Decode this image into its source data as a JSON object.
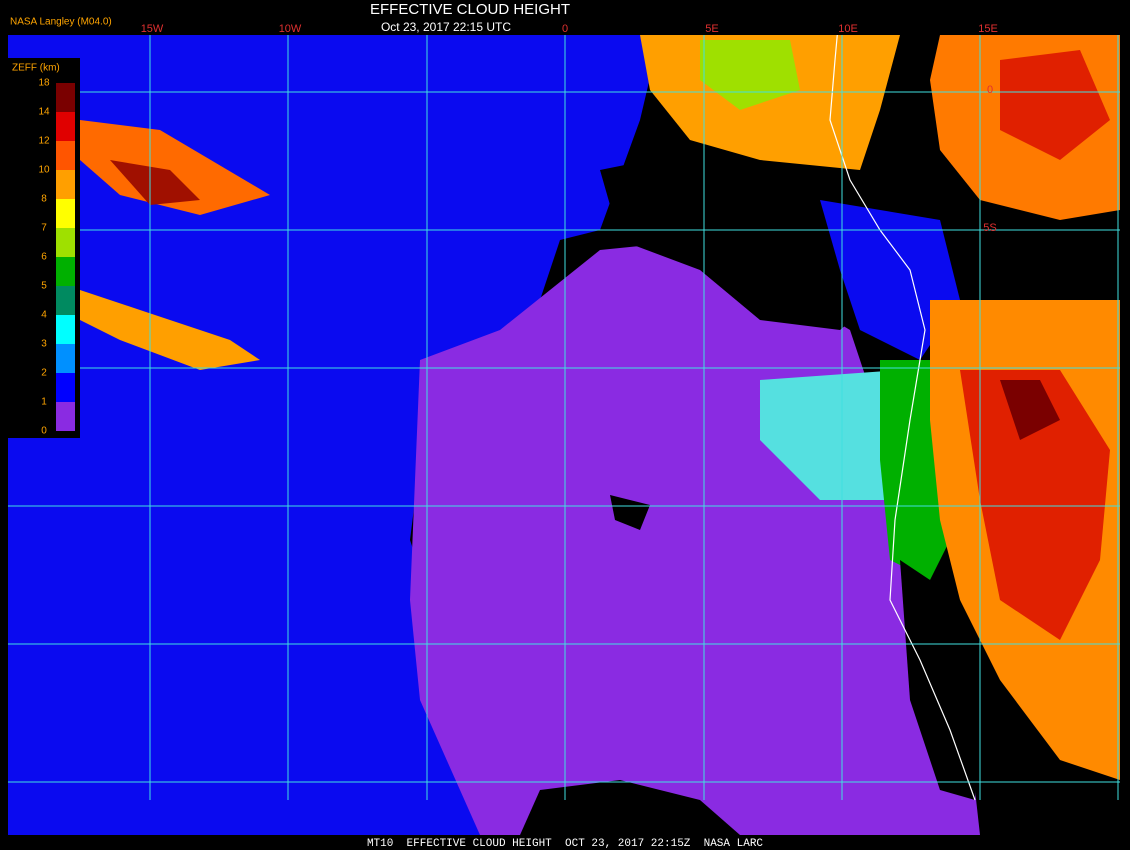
{
  "header": {
    "title": "EFFECTIVE CLOUD HEIGHT",
    "subtitle": "Oct 23, 2017 22:15 UTC",
    "source": "NASA Langley (M04.0)"
  },
  "colorbar": {
    "title": "ZEFF (km)",
    "ticks": [
      18,
      14,
      12,
      10,
      8,
      7,
      6,
      5,
      4,
      3,
      2,
      1,
      0
    ],
    "colors": [
      "#7a0000",
      "#e00000",
      "#ff5500",
      "#ff9f00",
      "#ffff00",
      "#9fe000",
      "#00b000",
      "#008a60",
      "#00ffff",
      "#0090ff",
      "#0000ff",
      "#8a2be2"
    ]
  },
  "longitude_labels": [
    "15W",
    "10W",
    "0",
    "5E",
    "10E",
    "15E"
  ],
  "latitude_labels": [
    "0",
    "5S"
  ],
  "footer": "MT10  EFFECTIVE CLOUD HEIGHT  OCT 23, 2017 22:15Z  NASA LARC"
}
